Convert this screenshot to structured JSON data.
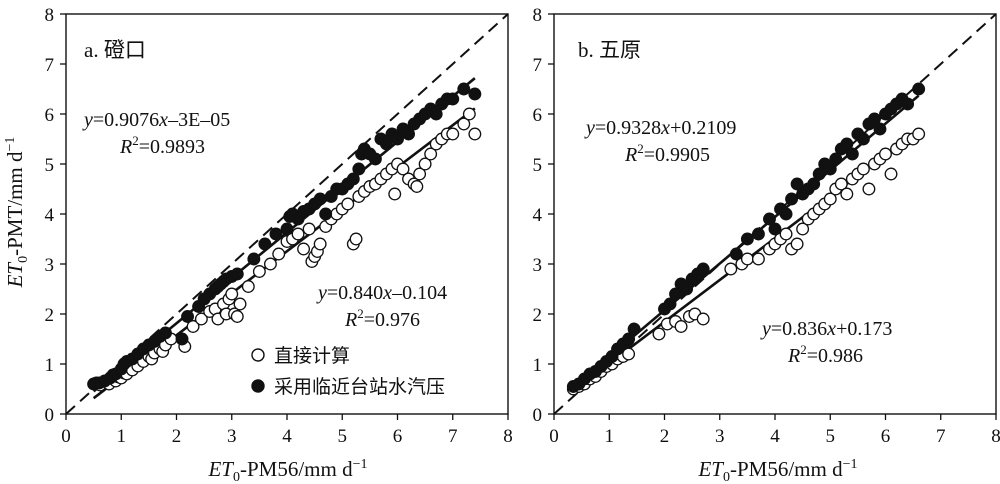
{
  "chart_data": [
    {
      "type": "scatter",
      "panel_label": "a. 磴口",
      "xlabel": "ET0-PM56/mm d−1",
      "ylabel": "ET0-PMT/mm d−1",
      "xlim": [
        0,
        8
      ],
      "ylim": [
        0,
        8
      ],
      "xticks": [
        "0",
        "1",
        "2",
        "3",
        "4",
        "5",
        "6",
        "7",
        "8"
      ],
      "yticks": [
        "0",
        "1",
        "2",
        "3",
        "4",
        "5",
        "6",
        "7",
        "8"
      ],
      "reference_line": "1:1 dashed",
      "legend": {
        "placement": "bottom-right",
        "entries": [
          "直接计算",
          "采用临近台站水汽压"
        ]
      },
      "series": [
        {
          "name": "直接计算",
          "marker": "open-circle",
          "fit": {
            "slope": 0.84,
            "intercept": -0.104,
            "x_range": [
              0.5,
              7.4
            ]
          },
          "equation": "y=0.840x–0.104",
          "r2": "R2=0.976",
          "points": [
            [
              0.55,
              0.62
            ],
            [
              0.62,
              0.58
            ],
            [
              0.7,
              0.65
            ],
            [
              0.78,
              0.6
            ],
            [
              0.85,
              0.7
            ],
            [
              0.9,
              0.66
            ],
            [
              0.95,
              0.74
            ],
            [
              1.0,
              0.72
            ],
            [
              1.05,
              0.82
            ],
            [
              1.1,
              0.8
            ],
            [
              1.2,
              0.88
            ],
            [
              1.3,
              0.96
            ],
            [
              1.4,
              1.05
            ],
            [
              1.5,
              1.15
            ],
            [
              1.55,
              1.1
            ],
            [
              1.6,
              1.22
            ],
            [
              1.7,
              1.3
            ],
            [
              1.75,
              1.25
            ],
            [
              1.8,
              1.38
            ],
            [
              1.9,
              1.5
            ],
            [
              2.15,
              1.35
            ],
            [
              2.3,
              1.75
            ],
            [
              2.45,
              1.9
            ],
            [
              2.6,
              2.05
            ],
            [
              2.7,
              2.1
            ],
            [
              2.75,
              1.9
            ],
            [
              2.85,
              2.2
            ],
            [
              2.9,
              2.0
            ],
            [
              2.95,
              2.3
            ],
            [
              3.0,
              2.4
            ],
            [
              3.05,
              2.0
            ],
            [
              3.1,
              1.95
            ],
            [
              3.15,
              2.2
            ],
            [
              3.3,
              2.55
            ],
            [
              3.5,
              2.85
            ],
            [
              3.7,
              3.0
            ],
            [
              3.85,
              3.2
            ],
            [
              4.0,
              3.45
            ],
            [
              4.1,
              3.5
            ],
            [
              4.2,
              3.6
            ],
            [
              4.3,
              3.3
            ],
            [
              4.4,
              3.7
            ],
            [
              4.45,
              3.05
            ],
            [
              4.5,
              3.15
            ],
            [
              4.55,
              3.25
            ],
            [
              4.6,
              3.4
            ],
            [
              4.7,
              3.75
            ],
            [
              4.8,
              3.9
            ],
            [
              4.9,
              4.0
            ],
            [
              5.0,
              4.1
            ],
            [
              5.1,
              4.2
            ],
            [
              5.2,
              3.4
            ],
            [
              5.25,
              3.5
            ],
            [
              5.3,
              4.35
            ],
            [
              5.4,
              4.45
            ],
            [
              5.5,
              4.55
            ],
            [
              5.6,
              4.6
            ],
            [
              5.7,
              4.7
            ],
            [
              5.8,
              4.8
            ],
            [
              5.9,
              4.9
            ],
            [
              5.95,
              4.4
            ],
            [
              6.0,
              5.0
            ],
            [
              6.1,
              4.9
            ],
            [
              6.2,
              4.7
            ],
            [
              6.3,
              4.6
            ],
            [
              6.35,
              4.55
            ],
            [
              6.4,
              4.8
            ],
            [
              6.5,
              5.0
            ],
            [
              6.6,
              5.2
            ],
            [
              6.7,
              5.4
            ],
            [
              6.8,
              5.5
            ],
            [
              6.9,
              5.6
            ],
            [
              7.0,
              5.6
            ],
            [
              7.2,
              5.8
            ],
            [
              7.3,
              6.0
            ],
            [
              7.4,
              5.6
            ]
          ]
        },
        {
          "name": "采用临近台站水汽压",
          "marker": "filled-circle",
          "fit": {
            "slope": 0.9076,
            "intercept": -3e-05,
            "x_range": [
              0.5,
              7.4
            ]
          },
          "equation": "y=0.9076x–3E–05",
          "r2": "R2=0.9893",
          "points": [
            [
              0.5,
              0.6
            ],
            [
              0.6,
              0.62
            ],
            [
              0.7,
              0.66
            ],
            [
              0.8,
              0.72
            ],
            [
              0.85,
              0.78
            ],
            [
              0.9,
              0.8
            ],
            [
              1.0,
              0.9
            ],
            [
              1.05,
              1.0
            ],
            [
              1.1,
              1.05
            ],
            [
              1.2,
              1.1
            ],
            [
              1.3,
              1.2
            ],
            [
              1.4,
              1.3
            ],
            [
              1.5,
              1.38
            ],
            [
              1.6,
              1.45
            ],
            [
              1.7,
              1.55
            ],
            [
              1.8,
              1.62
            ],
            [
              2.1,
              1.5
            ],
            [
              2.2,
              1.95
            ],
            [
              2.4,
              2.15
            ],
            [
              2.5,
              2.3
            ],
            [
              2.6,
              2.4
            ],
            [
              2.7,
              2.5
            ],
            [
              2.75,
              2.55
            ],
            [
              2.8,
              2.6
            ],
            [
              2.85,
              2.65
            ],
            [
              2.9,
              2.7
            ],
            [
              3.0,
              2.75
            ],
            [
              3.1,
              2.8
            ],
            [
              3.4,
              3.1
            ],
            [
              3.6,
              3.4
            ],
            [
              3.8,
              3.6
            ],
            [
              4.0,
              3.7
            ],
            [
              4.05,
              3.95
            ],
            [
              4.1,
              4.0
            ],
            [
              4.2,
              3.9
            ],
            [
              4.3,
              4.05
            ],
            [
              4.4,
              4.1
            ],
            [
              4.5,
              4.2
            ],
            [
              4.6,
              4.3
            ],
            [
              4.7,
              4.0
            ],
            [
              4.8,
              4.35
            ],
            [
              4.9,
              4.5
            ],
            [
              5.0,
              4.5
            ],
            [
              5.1,
              4.6
            ],
            [
              5.2,
              4.7
            ],
            [
              5.3,
              4.9
            ],
            [
              5.35,
              5.2
            ],
            [
              5.4,
              5.3
            ],
            [
              5.5,
              5.2
            ],
            [
              5.6,
              5.1
            ],
            [
              5.7,
              5.5
            ],
            [
              5.8,
              5.4
            ],
            [
              5.9,
              5.6
            ],
            [
              6.0,
              5.5
            ],
            [
              6.1,
              5.7
            ],
            [
              6.2,
              5.6
            ],
            [
              6.3,
              5.8
            ],
            [
              6.4,
              5.9
            ],
            [
              6.5,
              6.0
            ],
            [
              6.6,
              6.1
            ],
            [
              6.7,
              6.0
            ],
            [
              6.8,
              6.2
            ],
            [
              6.9,
              6.3
            ],
            [
              7.0,
              6.3
            ],
            [
              7.2,
              6.5
            ],
            [
              7.4,
              6.4
            ]
          ]
        }
      ]
    },
    {
      "type": "scatter",
      "panel_label": "b. 五原",
      "xlabel": "ET0-PM56/mm d−1",
      "ylabel": "",
      "xlim": [
        0,
        8
      ],
      "ylim": [
        0,
        8
      ],
      "xticks": [
        "0",
        "1",
        "2",
        "3",
        "4",
        "5",
        "6",
        "7",
        "8"
      ],
      "yticks": [
        "0",
        "1",
        "2",
        "3",
        "4",
        "5",
        "6",
        "7",
        "8"
      ],
      "reference_line": "1:1 dashed",
      "series": [
        {
          "name": "直接计算",
          "marker": "open-circle",
          "fit": {
            "slope": 0.836,
            "intercept": 0.173,
            "x_range": [
              0.35,
              6.6
            ]
          },
          "equation": "y=0.836x+0.173",
          "r2": "R2=0.986",
          "points": [
            [
              0.35,
              0.5
            ],
            [
              0.45,
              0.55
            ],
            [
              0.55,
              0.6
            ],
            [
              0.65,
              0.7
            ],
            [
              0.75,
              0.75
            ],
            [
              0.85,
              0.85
            ],
            [
              0.95,
              0.95
            ],
            [
              1.05,
              1.0
            ],
            [
              1.15,
              1.1
            ],
            [
              1.25,
              1.15
            ],
            [
              1.35,
              1.2
            ],
            [
              1.9,
              1.6
            ],
            [
              2.05,
              1.8
            ],
            [
              2.2,
              1.85
            ],
            [
              2.3,
              1.75
            ],
            [
              2.45,
              1.95
            ],
            [
              2.55,
              2.0
            ],
            [
              2.7,
              1.9
            ],
            [
              3.2,
              2.9
            ],
            [
              3.4,
              3.0
            ],
            [
              3.5,
              3.1
            ],
            [
              3.7,
              3.1
            ],
            [
              3.9,
              3.3
            ],
            [
              4.0,
              3.4
            ],
            [
              4.1,
              3.5
            ],
            [
              4.2,
              3.6
            ],
            [
              4.3,
              3.3
            ],
            [
              4.4,
              3.4
            ],
            [
              4.5,
              3.7
            ],
            [
              4.6,
              3.9
            ],
            [
              4.7,
              4.0
            ],
            [
              4.8,
              4.1
            ],
            [
              4.9,
              4.2
            ],
            [
              5.0,
              4.3
            ],
            [
              5.1,
              4.5
            ],
            [
              5.2,
              4.6
            ],
            [
              5.3,
              4.4
            ],
            [
              5.4,
              4.7
            ],
            [
              5.5,
              4.8
            ],
            [
              5.6,
              4.9
            ],
            [
              5.7,
              4.5
            ],
            [
              5.8,
              5.0
            ],
            [
              5.9,
              5.1
            ],
            [
              6.0,
              5.2
            ],
            [
              6.1,
              4.8
            ],
            [
              6.2,
              5.3
            ],
            [
              6.3,
              5.4
            ],
            [
              6.4,
              5.5
            ],
            [
              6.5,
              5.5
            ],
            [
              6.6,
              5.6
            ]
          ]
        },
        {
          "name": "采用临近台站水汽压",
          "marker": "filled-circle",
          "fit": {
            "slope": 0.9328,
            "intercept": 0.2109,
            "x_range": [
              0.35,
              6.6
            ]
          },
          "equation": "y=0.9328x+0.2109",
          "r2": "R2=0.9905",
          "points": [
            [
              0.35,
              0.55
            ],
            [
              0.45,
              0.6
            ],
            [
              0.55,
              0.7
            ],
            [
              0.65,
              0.8
            ],
            [
              0.75,
              0.85
            ],
            [
              0.85,
              0.95
            ],
            [
              0.95,
              1.05
            ],
            [
              1.05,
              1.15
            ],
            [
              1.15,
              1.3
            ],
            [
              1.25,
              1.4
            ],
            [
              1.35,
              1.5
            ],
            [
              1.45,
              1.7
            ],
            [
              2.0,
              2.1
            ],
            [
              2.1,
              2.2
            ],
            [
              2.2,
              2.4
            ],
            [
              2.3,
              2.6
            ],
            [
              2.4,
              2.5
            ],
            [
              2.5,
              2.7
            ],
            [
              2.6,
              2.8
            ],
            [
              2.7,
              2.9
            ],
            [
              3.3,
              3.2
            ],
            [
              3.5,
              3.5
            ],
            [
              3.7,
              3.6
            ],
            [
              3.9,
              3.9
            ],
            [
              4.0,
              3.7
            ],
            [
              4.1,
              4.1
            ],
            [
              4.2,
              4.0
            ],
            [
              4.3,
              4.3
            ],
            [
              4.4,
              4.6
            ],
            [
              4.5,
              4.4
            ],
            [
              4.6,
              4.5
            ],
            [
              4.7,
              4.6
            ],
            [
              4.8,
              4.8
            ],
            [
              4.9,
              5.0
            ],
            [
              5.0,
              4.9
            ],
            [
              5.1,
              5.1
            ],
            [
              5.2,
              5.3
            ],
            [
              5.3,
              5.4
            ],
            [
              5.4,
              5.2
            ],
            [
              5.5,
              5.6
            ],
            [
              5.6,
              5.5
            ],
            [
              5.7,
              5.8
            ],
            [
              5.8,
              5.9
            ],
            [
              5.9,
              5.7
            ],
            [
              6.0,
              6.0
            ],
            [
              6.1,
              6.1
            ],
            [
              6.2,
              6.2
            ],
            [
              6.3,
              6.3
            ],
            [
              6.4,
              6.2
            ],
            [
              6.6,
              6.5
            ]
          ]
        }
      ]
    }
  ]
}
